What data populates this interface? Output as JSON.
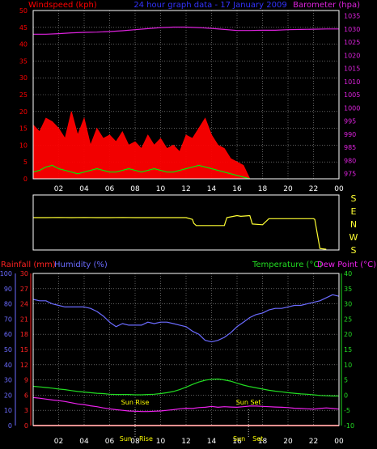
{
  "colors": {
    "background": "#000000",
    "frame": "#ffffff",
    "grid": "#9a9a9a",
    "wind": "#ff0000",
    "gust": "#ff0000",
    "wind_avg": "#00ee00",
    "wind_calm": "#ffffff",
    "barometer": "#dd22dd",
    "direction": "#ffff33",
    "rain": "#ff2222",
    "humidity": "#6b6bff",
    "temperature": "#22dd22",
    "dewpoint": "#ee22ee",
    "title": "#3333ff",
    "sun": "#ffff00"
  },
  "chart_data": [
    {
      "type": "line",
      "panel": "wind-barometer",
      "title": "24 hour graph data - 17 January 2009",
      "ylabel_left": "Windspeed (kph)",
      "ylabel_right": "Barometer (hpa)",
      "x_ticks": [
        "02",
        "04",
        "06",
        "08",
        "10",
        "12",
        "14",
        "16",
        "18",
        "20",
        "22",
        "00"
      ],
      "y_left_ticks": [
        0,
        5,
        10,
        15,
        20,
        25,
        30,
        35,
        40,
        45,
        50
      ],
      "y_right_ticks": [
        975,
        980,
        985,
        990,
        995,
        1000,
        1005,
        1010,
        1015,
        1020,
        1025,
        1030,
        1035
      ],
      "xlim": [
        0,
        24
      ],
      "ylim_left": [
        0,
        50
      ],
      "ylim_right": [
        973,
        1037
      ],
      "grid": true,
      "series": [
        {
          "role": "barometer",
          "axis": "right",
          "x": [
            0,
            1,
            2,
            3,
            4,
            5,
            6,
            7,
            8,
            9,
            10,
            11,
            12,
            13,
            14,
            15,
            16,
            17,
            18,
            19,
            20,
            21,
            22,
            23,
            24
          ],
          "y": [
            1028.0,
            1028.0,
            1028.2,
            1028.5,
            1028.7,
            1028.8,
            1029.0,
            1029.3,
            1029.7,
            1030.1,
            1030.5,
            1030.7,
            1030.7,
            1030.5,
            1030.2,
            1029.8,
            1029.4,
            1029.4,
            1029.5,
            1029.5,
            1029.7,
            1029.8,
            1029.9,
            1030.0,
            1030.0
          ]
        },
        {
          "role": "wind_gust",
          "axis": "left",
          "x": [
            0,
            0.5,
            1,
            1.5,
            2,
            2.5,
            3,
            3.5,
            4,
            4.5,
            5,
            5.5,
            6,
            6.5,
            7,
            7.5,
            8,
            8.5,
            9,
            9.5,
            10,
            10.5,
            11,
            11.5,
            12,
            12.5,
            13,
            13.5,
            14,
            14.5,
            15,
            15.5,
            16,
            16.5,
            17,
            17.5,
            18,
            18.5,
            19,
            19.5,
            20,
            20.5,
            21,
            21.5,
            22,
            22.5,
            23,
            23.5,
            24
          ],
          "y": [
            16,
            14,
            18,
            17,
            15,
            12,
            20,
            13,
            18,
            10,
            15,
            12,
            13,
            11,
            14,
            10,
            11,
            9,
            13,
            10,
            12,
            9,
            10,
            8,
            13,
            12,
            15,
            18,
            13,
            10,
            9,
            6,
            5,
            4,
            0,
            0,
            0,
            0,
            0,
            0,
            0,
            0,
            0,
            0,
            0,
            0,
            0,
            0,
            0
          ]
        },
        {
          "role": "wind_avg",
          "axis": "left",
          "x": [
            0,
            0.5,
            1,
            1.5,
            2,
            2.5,
            3,
            3.5,
            4,
            4.5,
            5,
            5.5,
            6,
            6.5,
            7,
            7.5,
            8,
            8.5,
            9,
            9.5,
            10,
            10.5,
            11,
            11.5,
            12,
            12.5,
            13,
            13.5,
            14,
            14.5,
            15,
            15.5,
            16,
            16.5,
            17
          ],
          "y": [
            2,
            2.5,
            3.5,
            4,
            3,
            2.5,
            2,
            1.5,
            2,
            2.5,
            3,
            2.5,
            2,
            2,
            2.5,
            3,
            2.5,
            2,
            2.5,
            3,
            2.5,
            2,
            2,
            2.5,
            3,
            3.5,
            4,
            3.5,
            3,
            2.5,
            2,
            1.5,
            1,
            0.5,
            0
          ]
        }
      ]
    },
    {
      "type": "line",
      "panel": "wind-direction",
      "y_labels": [
        "S",
        "E",
        "N",
        "W",
        "S"
      ],
      "xlim": [
        0,
        24
      ],
      "ylim": [
        0,
        360
      ],
      "series": [
        {
          "role": "direction",
          "x": [
            0,
            1,
            2,
            3,
            4,
            5,
            6,
            7,
            8,
            9,
            10,
            11,
            12,
            12.5,
            12.6,
            12.8,
            13,
            14,
            15,
            15.2,
            16,
            16.3,
            17,
            17.2,
            18,
            18.5,
            19,
            19.1,
            20,
            21,
            22,
            22.1,
            22.5,
            23
          ],
          "y": [
            212,
            212,
            213,
            212,
            213,
            212,
            212,
            213,
            212,
            212,
            212,
            212,
            212,
            200,
            175,
            160,
            160,
            160,
            160,
            212,
            225,
            220,
            225,
            170,
            165,
            205,
            205,
            205,
            205,
            205,
            205,
            200,
            10,
            5
          ]
        }
      ]
    },
    {
      "type": "line",
      "panel": "humidity-temperature",
      "ylabel_left_1": "Rainfall (mm)",
      "ylabel_left_2": "Humidity (%)",
      "ylabel_right_1": "Temperature (°C)",
      "ylabel_right_2": "Dew Point (°C)",
      "x_ticks": [
        "02",
        "04",
        "06",
        "08",
        "10",
        "12",
        "14",
        "16",
        "18",
        "20",
        "22",
        "00"
      ],
      "y_humidity_ticks": [
        0,
        10,
        20,
        30,
        40,
        50,
        60,
        70,
        80,
        90,
        100
      ],
      "y_rain_ticks": [
        0,
        3,
        6,
        9,
        12,
        15,
        18,
        21,
        24,
        27,
        30
      ],
      "y_temp_ticks": [
        -10,
        -5,
        0,
        5,
        10,
        15,
        20,
        25,
        30,
        35,
        40
      ],
      "ylim_humidity": [
        0,
        100
      ],
      "ylim_temp": [
        -10,
        40
      ],
      "xlim": [
        0,
        24
      ],
      "grid": true,
      "annotations": [
        {
          "text": "Sun Rise",
          "x": 8.0
        },
        {
          "text": "Sun Set",
          "x": 16.9
        }
      ],
      "bottom_labels": [
        {
          "text": "Sun",
          "x": 8.0
        },
        {
          "text": "Rise",
          "x": 8.0
        },
        {
          "text": "Sun",
          "x": 16.9
        },
        {
          "text": "Set",
          "x": 16.9
        }
      ],
      "series": [
        {
          "role": "humidity",
          "axis": "humidity",
          "x": [
            0,
            0.5,
            1,
            1.5,
            2,
            2.5,
            3,
            3.5,
            4,
            4.5,
            5,
            5.5,
            6,
            6.5,
            7,
            7.5,
            8,
            8.5,
            9,
            9.5,
            10,
            10.5,
            11,
            11.5,
            12,
            12.5,
            13,
            13.5,
            14,
            14.5,
            15,
            15.5,
            16,
            16.5,
            17,
            17.5,
            18,
            18.5,
            19,
            19.5,
            20,
            20.5,
            21,
            21.5,
            22,
            22.5,
            23,
            23.5,
            24
          ],
          "y": [
            83,
            82,
            82,
            80,
            79,
            78,
            78,
            78,
            78,
            77,
            75,
            72,
            68,
            65,
            67,
            66,
            66,
            66,
            68,
            67,
            68,
            68,
            67,
            66,
            65,
            62,
            60,
            56,
            55,
            56,
            58,
            61,
            65,
            68,
            71,
            73,
            74,
            76,
            77,
            77,
            78,
            79,
            79,
            80,
            81,
            82,
            84,
            86,
            85
          ]
        },
        {
          "role": "rainfall",
          "axis": "humidity",
          "x": [
            0,
            24
          ],
          "y": [
            0,
            0
          ]
        },
        {
          "role": "temperature",
          "axis": "temp",
          "x": [
            0,
            0.5,
            1,
            1.5,
            2,
            2.5,
            3,
            3.5,
            4,
            4.5,
            5,
            5.5,
            6,
            6.5,
            7,
            7.5,
            8,
            8.5,
            9,
            9.5,
            10,
            10.5,
            11,
            11.5,
            12,
            12.5,
            13,
            13.5,
            14,
            14.5,
            15,
            15.5,
            16,
            16.5,
            17,
            17.5,
            18,
            18.5,
            19,
            19.5,
            20,
            20.5,
            21,
            21.5,
            22,
            22.5,
            23,
            23.5,
            24
          ],
          "y": [
            2.9,
            2.7,
            2.5,
            2.3,
            2.0,
            1.8,
            1.5,
            1.2,
            1.0,
            0.8,
            0.6,
            0.5,
            0.3,
            0.2,
            0.2,
            0.2,
            0.1,
            0.1,
            0.2,
            0.3,
            0.5,
            0.8,
            1.2,
            1.8,
            2.6,
            3.5,
            4.3,
            4.9,
            5.2,
            5.3,
            5.0,
            4.6,
            3.9,
            3.3,
            2.8,
            2.4,
            2.0,
            1.6,
            1.3,
            1.1,
            0.8,
            0.6,
            0.4,
            0.3,
            0.1,
            -0.1,
            -0.2,
            -0.3,
            -0.3
          ]
        },
        {
          "role": "dewpoint",
          "axis": "temp",
          "x": [
            0,
            0.5,
            1,
            1.5,
            2,
            2.5,
            3,
            3.5,
            4,
            4.5,
            5,
            5.5,
            6,
            6.5,
            7,
            7.5,
            8,
            8.5,
            9,
            9.5,
            10,
            10.5,
            11,
            11.5,
            12,
            12.5,
            13,
            13.5,
            14,
            14.5,
            15,
            15.5,
            16,
            16.5,
            17,
            17.5,
            18,
            18.5,
            19,
            19.5,
            20,
            20.5,
            21,
            21.5,
            22,
            22.5,
            23,
            23.5,
            24
          ],
          "y": [
            -0.8,
            -1.0,
            -1.3,
            -1.6,
            -1.8,
            -2.1,
            -2.5,
            -2.9,
            -3.1,
            -3.5,
            -3.8,
            -4.2,
            -4.5,
            -4.8,
            -5.0,
            -5.2,
            -5.3,
            -5.4,
            -5.4,
            -5.3,
            -5.2,
            -5.0,
            -4.8,
            -4.5,
            -4.3,
            -4.4,
            -4.1,
            -4.0,
            -3.7,
            -4.0,
            -3.8,
            -3.9,
            -4.0,
            -3.8,
            -3.6,
            -3.6,
            -3.7,
            -3.8,
            -3.9,
            -4.0,
            -4.1,
            -4.3,
            -4.4,
            -4.5,
            -4.6,
            -4.4,
            -4.2,
            -4.4,
            -4.6
          ]
        }
      ]
    }
  ]
}
